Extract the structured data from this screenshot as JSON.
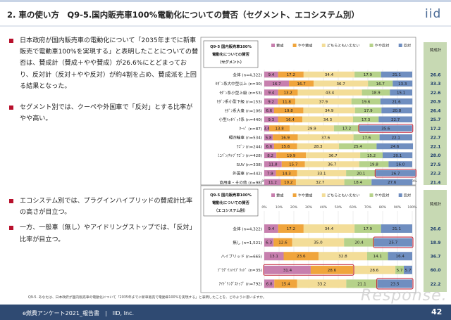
{
  "header": {
    "title": "2. 車の使い方　Q9-5.国内販売車100%電動化についての賛否（セグメント、エコシステム別）",
    "logo": "iid"
  },
  "bullets_top": [
    "日本政府が国内販売車の電動化について「2035年までに新車販売で電動車100%を実現する」と表明したことについての賛否は、賛成計（賛成＋やや賛成）が26.6%にとどまっており、反対計（反対＋やや反対）が約4割を占め、賛成派を上回る結果となった。",
    "セグメント別では、クーペや外国車で「反対」とする比率がやや高い。"
  ],
  "bullets_bottom": [
    "エコシステム別では、プラグインハイブリッドの賛成計比率の高さが目立つ。",
    "一方、一般車（無し）やアイドリングストップでは、「反対」比率が目立つ。"
  ],
  "colors": {
    "賛成": "#c77fae",
    "やや賛成": "#f0a53c",
    "どちらともいえない": "#f3dd98",
    "やや反対": "#b6d28a",
    "反対": "#6f8ec0",
    "highlight": "#c3243a",
    "total_bg": "#c7d9b3"
  },
  "chart_data": [
    {
      "type": "bar",
      "stacked": "horizontal-100%",
      "title": "Q9-5 国内販売車100%電動化についての賛否（セグメント）",
      "legend": [
        "賛成",
        "やや賛成",
        "どちらともいえない",
        "やや反対",
        "反対"
      ],
      "legend_placement": "top",
      "xlim": [
        0,
        100
      ],
      "ticks": [
        "0%",
        "10%",
        "20%",
        "30%",
        "40%",
        "50%",
        "60%",
        "70%",
        "80%",
        "90%",
        "100%"
      ],
      "total_label": "賛成計",
      "categories": [
        "全体 (n=4,322)",
        "ｾﾀﾞﾝ系大中型以上 (n=30)",
        "ｾﾀﾞﾝ系小型上級 (n=53)",
        "ｾﾀﾞﾝ系小型下級 (n=153)",
        "ｾﾀﾞﾝ系大衆 (n=106)",
        "小型ﾊｯﾁﾊﾞｯｸ系 (n=440)",
        "ｸｰﾍﾟ (n=87)",
        "軽四輪車 (n=534)",
        "ﾜｺﾞﾝ (n=244)",
        "ﾐﾆﾊﾞﾝ/ｷｬﾌﾞﾜｺﾞﾝ (n=428)",
        "SUV (n=338)",
        "外国車 (n=442)",
        "商用車・その他 (n=98)"
      ],
      "series": [
        {
          "name": "賛成",
          "values": [
            9.4,
            16.7,
            9.4,
            9.2,
            6.6,
            9.3,
            3.4,
            5.8,
            6.6,
            8.2,
            11.8,
            7.9,
            11.2
          ]
        },
        {
          "name": "やや賛成",
          "values": [
            17.2,
            16.7,
            13.2,
            11.8,
            19.8,
            16.4,
            13.8,
            16.9,
            15.6,
            19.9,
            15.7,
            14.3,
            10.2
          ]
        },
        {
          "name": "どちらともいえない",
          "values": [
            34.4,
            36.7,
            43.4,
            37.9,
            34.9,
            34.3,
            29.9,
            37.6,
            28.3,
            36.7,
            36.7,
            33.1,
            32.7
          ]
        },
        {
          "name": "やや反対",
          "values": [
            17.9,
            16.7,
            18.9,
            19.6,
            17.9,
            17.3,
            17.2,
            17.6,
            25.4,
            15.2,
            19.8,
            20.1,
            18.4
          ]
        },
        {
          "name": "反対",
          "values": [
            21.1,
            13.3,
            15.1,
            21.6,
            20.8,
            22.7,
            35.6,
            22.1,
            24.6,
            20.1,
            16.0,
            26.7,
            27.6
          ]
        }
      ],
      "totals": [
        "26.6",
        "33.3",
        "22.6",
        "20.9",
        "26.4",
        "25.7",
        "17.2",
        "22.7",
        "22.1",
        "28.0",
        "27.5",
        "22.2",
        "21.4"
      ],
      "highlight_rows": [
        6,
        11
      ],
      "highlight_series": "反対"
    },
    {
      "type": "bar",
      "stacked": "horizontal-100%",
      "title": "Q9-5 国内販売車100%電動化についての賛否（エコシステム別）",
      "legend": [
        "賛成",
        "やや賛成",
        "どちらともいえない",
        "やや反対",
        "反対"
      ],
      "legend_placement": "top",
      "xlim": [
        0,
        100
      ],
      "ticks": [
        "0%",
        "10%",
        "20%",
        "30%",
        "40%",
        "50%",
        "60%",
        "70%",
        "80%",
        "90%",
        "100%"
      ],
      "total_label": "賛成計",
      "categories": [
        "全体 (n=4,322)",
        "無し (n=1,521)",
        "ハイブリッド (n=665)",
        "ﾌﾟﾗｸﾞｲﾝﾊｲﾌﾞﾘｯﾄﾞ (n=35)",
        "ｱｲﾄﾞﾘﾝｸﾞｽﾄｯﾌﾟ (n=792)"
      ],
      "series": [
        {
          "name": "賛成",
          "values": [
            9.4,
            6.3,
            13.1,
            31.4,
            6.8
          ]
        },
        {
          "name": "やや賛成",
          "values": [
            17.2,
            12.6,
            23.6,
            28.6,
            15.4
          ]
        },
        {
          "name": "どちらともいえない",
          "values": [
            34.4,
            35.0,
            32.8,
            28.6,
            33.2
          ]
        },
        {
          "name": "やや反対",
          "values": [
            17.9,
            20.4,
            14.1,
            5.7,
            21.1
          ]
        },
        {
          "name": "反対",
          "values": [
            21.1,
            25.7,
            16.4,
            5.7,
            23.5
          ]
        }
      ],
      "totals": [
        "26.6",
        "18.9",
        "36.7",
        "60.0",
        "22.2"
      ],
      "highlight_rows": [
        3,
        1,
        4
      ],
      "highlight_series": "mixed"
    }
  ],
  "footnote": "Q9-5. あなたは、日本政府が国内販売車の電動化について「2035年までに新車販売で電動車100%を実現する」と表明したことを、どのように思いますか。",
  "footer": {
    "text": "e燃費アンケート2021_報告書　|　IID, Inc.",
    "page": "42"
  },
  "watermark": "Response."
}
